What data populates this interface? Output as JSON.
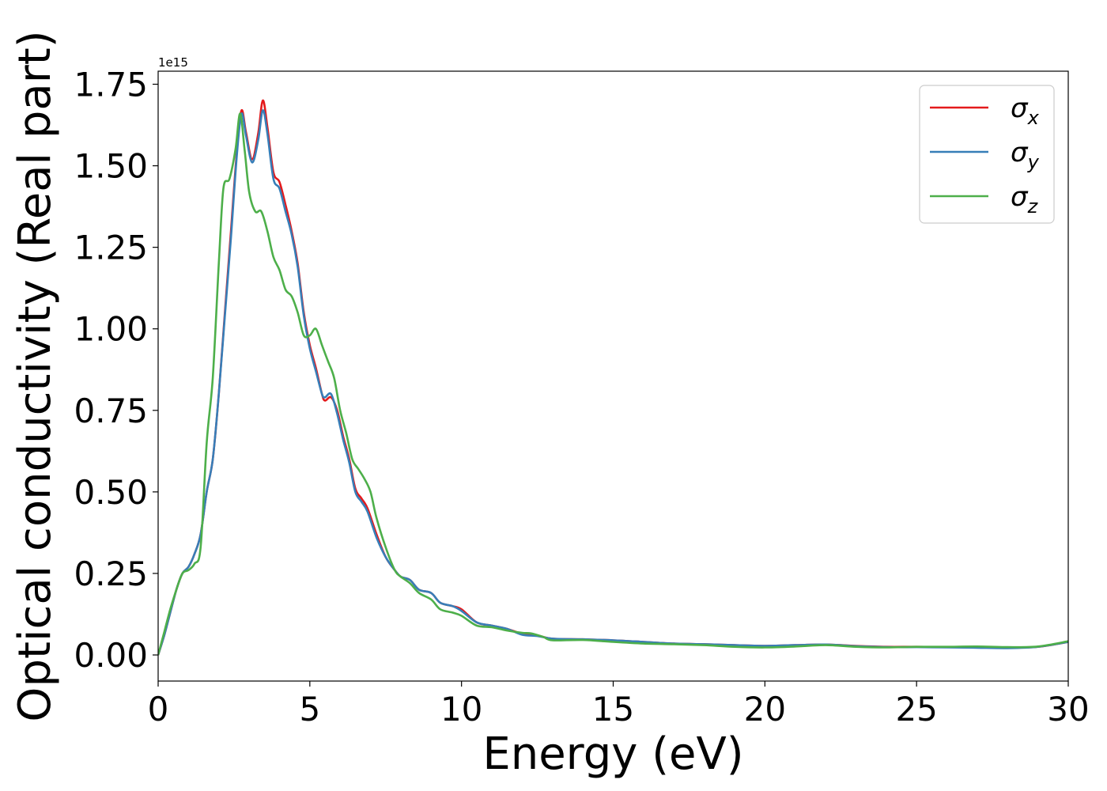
{
  "chart_data": {
    "type": "line",
    "title": "",
    "xlabel": "Energy (eV)",
    "ylabel": "Optical conductivity (Real part)",
    "offset_text": "1e15",
    "xlim": [
      0,
      30
    ],
    "ylim": [
      -0.08,
      1.79
    ],
    "x_ticks": [
      0,
      5,
      10,
      15,
      20,
      25,
      30
    ],
    "x_tick_labels": [
      "0",
      "5",
      "10",
      "15",
      "20",
      "25",
      "30"
    ],
    "y_ticks": [
      0.0,
      0.25,
      0.5,
      0.75,
      1.0,
      1.25,
      1.5,
      1.75
    ],
    "y_tick_labels": [
      "0.00",
      "0.25",
      "0.50",
      "0.75",
      "1.00",
      "1.25",
      "1.50",
      "1.75"
    ],
    "grid": false,
    "legend_position": "top-right",
    "series": [
      {
        "name": "σ",
        "subscript": "x",
        "color": "#e41a1c",
        "points": [
          [
            0,
            0.0
          ],
          [
            0.2,
            0.06
          ],
          [
            0.4,
            0.13
          ],
          [
            0.6,
            0.2
          ],
          [
            0.8,
            0.25
          ],
          [
            1.0,
            0.27
          ],
          [
            1.2,
            0.31
          ],
          [
            1.4,
            0.37
          ],
          [
            1.6,
            0.5
          ],
          [
            1.8,
            0.6
          ],
          [
            2.0,
            0.8
          ],
          [
            2.2,
            1.05
          ],
          [
            2.4,
            1.3
          ],
          [
            2.6,
            1.55
          ],
          [
            2.75,
            1.67
          ],
          [
            2.9,
            1.6
          ],
          [
            3.1,
            1.52
          ],
          [
            3.3,
            1.6
          ],
          [
            3.45,
            1.7
          ],
          [
            3.6,
            1.62
          ],
          [
            3.8,
            1.48
          ],
          [
            4.0,
            1.45
          ],
          [
            4.2,
            1.38
          ],
          [
            4.4,
            1.3
          ],
          [
            4.6,
            1.2
          ],
          [
            4.8,
            1.05
          ],
          [
            5.0,
            0.95
          ],
          [
            5.2,
            0.88
          ],
          [
            5.4,
            0.8
          ],
          [
            5.5,
            0.78
          ],
          [
            5.7,
            0.79
          ],
          [
            5.9,
            0.75
          ],
          [
            6.1,
            0.67
          ],
          [
            6.3,
            0.6
          ],
          [
            6.5,
            0.51
          ],
          [
            6.7,
            0.48
          ],
          [
            6.9,
            0.45
          ],
          [
            7.2,
            0.37
          ],
          [
            7.5,
            0.3
          ],
          [
            7.8,
            0.26
          ],
          [
            8.0,
            0.24
          ],
          [
            8.3,
            0.23
          ],
          [
            8.6,
            0.2
          ],
          [
            9.0,
            0.19
          ],
          [
            9.3,
            0.16
          ],
          [
            9.7,
            0.15
          ],
          [
            10.0,
            0.14
          ],
          [
            10.5,
            0.1
          ],
          [
            11.0,
            0.09
          ],
          [
            11.5,
            0.08
          ],
          [
            12.0,
            0.065
          ],
          [
            12.5,
            0.06
          ],
          [
            13.0,
            0.05
          ],
          [
            14.0,
            0.048
          ],
          [
            15.0,
            0.045
          ],
          [
            16.0,
            0.04
          ],
          [
            17.0,
            0.035
          ],
          [
            18.0,
            0.033
          ],
          [
            19.0,
            0.03
          ],
          [
            20.0,
            0.028
          ],
          [
            21.0,
            0.03
          ],
          [
            22.0,
            0.032
          ],
          [
            23.0,
            0.028
          ],
          [
            24.0,
            0.025
          ],
          [
            25.0,
            0.025
          ],
          [
            26.0,
            0.024
          ],
          [
            27.0,
            0.023
          ],
          [
            28.0,
            0.022
          ],
          [
            29.0,
            0.025
          ],
          [
            30.0,
            0.04
          ]
        ]
      },
      {
        "name": "σ",
        "subscript": "y",
        "color": "#377eb8",
        "points": [
          [
            0,
            0.0
          ],
          [
            0.2,
            0.06
          ],
          [
            0.4,
            0.13
          ],
          [
            0.6,
            0.2
          ],
          [
            0.8,
            0.25
          ],
          [
            1.0,
            0.27
          ],
          [
            1.2,
            0.31
          ],
          [
            1.4,
            0.37
          ],
          [
            1.6,
            0.5
          ],
          [
            1.8,
            0.6
          ],
          [
            2.0,
            0.8
          ],
          [
            2.2,
            1.04
          ],
          [
            2.4,
            1.28
          ],
          [
            2.6,
            1.54
          ],
          [
            2.75,
            1.66
          ],
          [
            2.9,
            1.59
          ],
          [
            3.1,
            1.51
          ],
          [
            3.3,
            1.58
          ],
          [
            3.45,
            1.67
          ],
          [
            3.6,
            1.6
          ],
          [
            3.8,
            1.46
          ],
          [
            4.0,
            1.43
          ],
          [
            4.2,
            1.36
          ],
          [
            4.4,
            1.29
          ],
          [
            4.6,
            1.19
          ],
          [
            4.8,
            1.04
          ],
          [
            5.0,
            0.94
          ],
          [
            5.2,
            0.87
          ],
          [
            5.4,
            0.8
          ],
          [
            5.5,
            0.79
          ],
          [
            5.7,
            0.8
          ],
          [
            5.9,
            0.74
          ],
          [
            6.1,
            0.66
          ],
          [
            6.3,
            0.59
          ],
          [
            6.5,
            0.5
          ],
          [
            6.7,
            0.47
          ],
          [
            6.9,
            0.44
          ],
          [
            7.2,
            0.36
          ],
          [
            7.5,
            0.3
          ],
          [
            7.8,
            0.26
          ],
          [
            8.0,
            0.24
          ],
          [
            8.3,
            0.23
          ],
          [
            8.6,
            0.2
          ],
          [
            9.0,
            0.19
          ],
          [
            9.3,
            0.16
          ],
          [
            9.7,
            0.15
          ],
          [
            10.0,
            0.135
          ],
          [
            10.5,
            0.1
          ],
          [
            11.0,
            0.09
          ],
          [
            11.5,
            0.08
          ],
          [
            12.0,
            0.062
          ],
          [
            12.5,
            0.058
          ],
          [
            13.0,
            0.05
          ],
          [
            14.0,
            0.048
          ],
          [
            15.0,
            0.045
          ],
          [
            16.0,
            0.04
          ],
          [
            17.0,
            0.035
          ],
          [
            18.0,
            0.033
          ],
          [
            19.0,
            0.03
          ],
          [
            20.0,
            0.028
          ],
          [
            21.0,
            0.03
          ],
          [
            22.0,
            0.032
          ],
          [
            23.0,
            0.027
          ],
          [
            24.0,
            0.024
          ],
          [
            25.0,
            0.024
          ],
          [
            26.0,
            0.023
          ],
          [
            27.0,
            0.022
          ],
          [
            28.0,
            0.021
          ],
          [
            29.0,
            0.025
          ],
          [
            30.0,
            0.04
          ]
        ]
      },
      {
        "name": "σ",
        "subscript": "z",
        "color": "#4daf4a",
        "points": [
          [
            0,
            0.0
          ],
          [
            0.2,
            0.07
          ],
          [
            0.4,
            0.14
          ],
          [
            0.6,
            0.2
          ],
          [
            0.8,
            0.25
          ],
          [
            1.0,
            0.26
          ],
          [
            1.2,
            0.28
          ],
          [
            1.4,
            0.33
          ],
          [
            1.6,
            0.65
          ],
          [
            1.8,
            0.85
          ],
          [
            2.0,
            1.2
          ],
          [
            2.15,
            1.43
          ],
          [
            2.35,
            1.46
          ],
          [
            2.55,
            1.55
          ],
          [
            2.7,
            1.66
          ],
          [
            2.85,
            1.55
          ],
          [
            3.0,
            1.42
          ],
          [
            3.2,
            1.36
          ],
          [
            3.4,
            1.36
          ],
          [
            3.6,
            1.3
          ],
          [
            3.8,
            1.22
          ],
          [
            4.0,
            1.18
          ],
          [
            4.2,
            1.12
          ],
          [
            4.4,
            1.1
          ],
          [
            4.6,
            1.05
          ],
          [
            4.8,
            0.98
          ],
          [
            5.0,
            0.98
          ],
          [
            5.2,
            1.0
          ],
          [
            5.4,
            0.95
          ],
          [
            5.6,
            0.9
          ],
          [
            5.8,
            0.85
          ],
          [
            6.0,
            0.75
          ],
          [
            6.2,
            0.68
          ],
          [
            6.4,
            0.6
          ],
          [
            6.6,
            0.57
          ],
          [
            6.8,
            0.54
          ],
          [
            7.0,
            0.5
          ],
          [
            7.2,
            0.42
          ],
          [
            7.5,
            0.33
          ],
          [
            7.8,
            0.26
          ],
          [
            8.0,
            0.24
          ],
          [
            8.3,
            0.22
          ],
          [
            8.6,
            0.19
          ],
          [
            9.0,
            0.17
          ],
          [
            9.3,
            0.14
          ],
          [
            9.7,
            0.13
          ],
          [
            10.0,
            0.12
          ],
          [
            10.5,
            0.09
          ],
          [
            11.0,
            0.085
          ],
          [
            11.5,
            0.075
          ],
          [
            12.0,
            0.068
          ],
          [
            12.3,
            0.066
          ],
          [
            12.7,
            0.055
          ],
          [
            13.0,
            0.045
          ],
          [
            14.0,
            0.046
          ],
          [
            15.0,
            0.04
          ],
          [
            16.0,
            0.035
          ],
          [
            17.0,
            0.033
          ],
          [
            18.0,
            0.03
          ],
          [
            19.0,
            0.025
          ],
          [
            20.0,
            0.023
          ],
          [
            21.0,
            0.026
          ],
          [
            22.0,
            0.03
          ],
          [
            23.0,
            0.025
          ],
          [
            24.0,
            0.023
          ],
          [
            25.0,
            0.025
          ],
          [
            26.0,
            0.025
          ],
          [
            27.0,
            0.026
          ],
          [
            28.0,
            0.024
          ],
          [
            29.0,
            0.026
          ],
          [
            30.0,
            0.042
          ]
        ]
      }
    ]
  }
}
